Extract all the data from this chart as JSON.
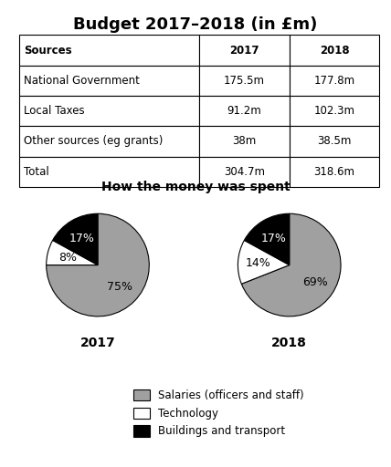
{
  "title": "Budget 2017–2018 (in £m)",
  "table_headers": [
    "Sources",
    "2017",
    "2018"
  ],
  "table_rows": [
    [
      "National Government",
      "175.5m",
      "177.8m"
    ],
    [
      "Local Taxes",
      "91.2m",
      "102.3m"
    ],
    [
      "Other sources (eg grants)",
      "38m",
      "38.5m"
    ],
    [
      "Total",
      "304.7m",
      "318.6m"
    ]
  ],
  "pie_title": "How the money was spent",
  "pie_2017": [
    75,
    8,
    17
  ],
  "pie_2018": [
    69,
    14,
    17
  ],
  "pie_colors": [
    "#a0a0a0",
    "#ffffff",
    "#000000"
  ],
  "pie_labels_2017": [
    "75%",
    "8%",
    "17%"
  ],
  "pie_labels_2018": [
    "69%",
    "14%",
    "17%"
  ],
  "pie_year_labels": [
    "2017",
    "2018"
  ],
  "legend_labels": [
    "Salaries (officers and staff)",
    "Technology",
    "Buildings and transport"
  ],
  "legend_colors": [
    "#a0a0a0",
    "#ffffff",
    "#000000"
  ],
  "bg_color": "#ffffff"
}
